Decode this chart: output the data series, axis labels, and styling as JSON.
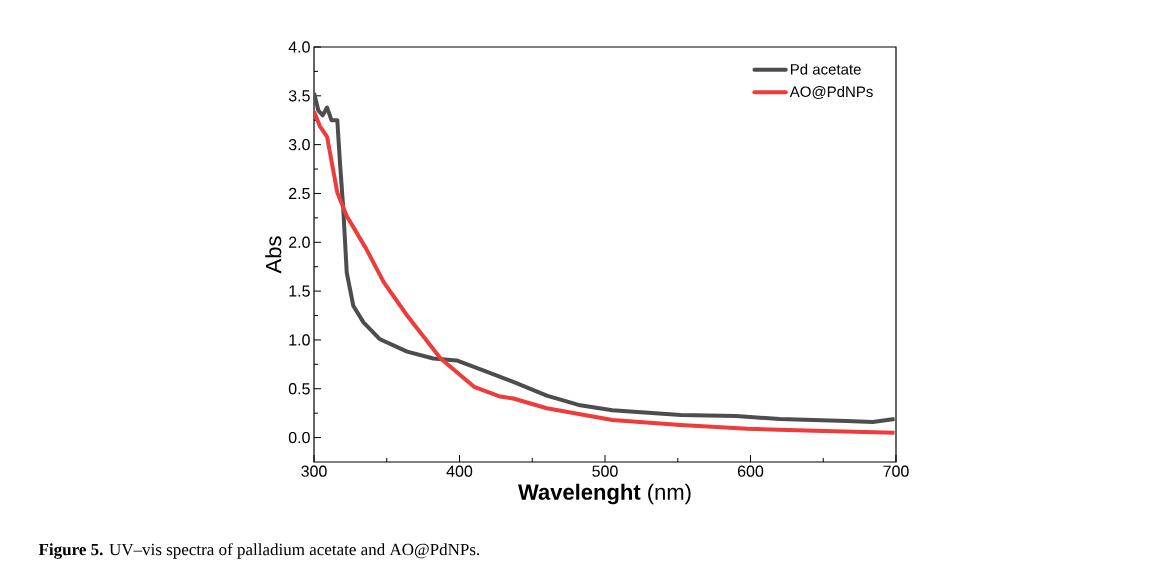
{
  "chart_data": {
    "type": "line",
    "xlabel": "**Wavelenght** (nm)",
    "ylabel": "Abs",
    "annotations": [
      "**Figure 5.** UV–vis spectra of palladium acetate and AO@PdNPs."
    ],
    "xlim": [
      300,
      700
    ],
    "ylim": [
      -0.25,
      4.0
    ],
    "xticks": [
      300,
      400,
      500,
      600,
      700
    ],
    "yticks": [
      {
        "value": 0,
        "label": "0.0"
      },
      0.5,
      {
        "value": 1,
        "label": "1.0"
      },
      1.5,
      {
        "value": 2,
        "label": "2.0"
      },
      2.5,
      {
        "value": 3,
        "label": "3.0"
      },
      3.5,
      {
        "value": 4,
        "label": "4.0"
      }
    ],
    "grid": false,
    "legend": "top right",
    "marker": "none",
    "line_style": "solid",
    "series": [
      {
        "name": "Pd acetate",
        "color": "#4d4d4d",
        "x": [
          300,
          303,
          306,
          309,
          312,
          316,
          318,
          320,
          322.5,
          327,
          334,
          345,
          364,
          382,
          398,
          414,
          437,
          460,
          483,
          505,
          552,
          590,
          620,
          666,
          684,
          699
        ],
        "values": [
          3.53,
          3.35,
          3.3,
          3.38,
          3.25,
          3.25,
          2.78,
          2.37,
          1.69,
          1.35,
          1.18,
          1.01,
          0.88,
          0.81,
          0.79,
          0.7,
          0.57,
          0.43,
          0.33,
          0.28,
          0.23,
          0.22,
          0.19,
          0.17,
          0.16,
          0.19
        ]
      },
      {
        "name": "AO@PdNPs",
        "color": "#ee3b3b",
        "x": [
          300,
          304,
          309,
          316,
          322.5,
          336,
          348,
          364,
          387,
          410,
          428,
          437,
          460,
          505,
          552,
          598,
          644,
          699
        ],
        "values": [
          3.34,
          3.19,
          3.08,
          2.51,
          2.27,
          1.93,
          1.59,
          1.25,
          0.81,
          0.52,
          0.42,
          0.4,
          0.3,
          0.18,
          0.13,
          0.09,
          0.07,
          0.05
        ]
      }
    ]
  }
}
